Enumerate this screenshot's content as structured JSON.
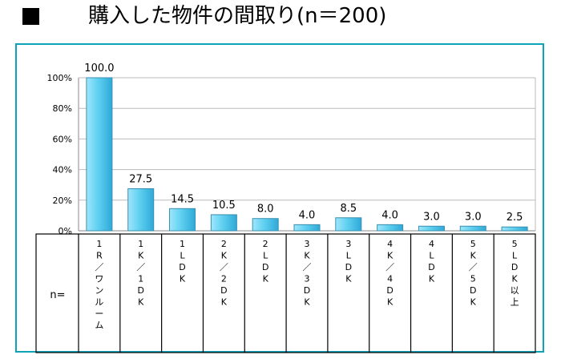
{
  "title": "購入した物件の間取り(n＝200)",
  "table_header": "n=",
  "chart_data": {
    "type": "bar",
    "title": "購入した物件の間取り(n＝200)",
    "categories": [
      "1R／ワンルーム",
      "1K／1DK",
      "1LDK",
      "2K／2DK",
      "2LDK",
      "3K／3DK",
      "3LDK",
      "4K／4DK",
      "4LDK",
      "5K／5DK",
      "5LDK以上"
    ],
    "values": [
      100.0,
      27.5,
      14.5,
      10.5,
      8.0,
      4.0,
      8.5,
      4.0,
      3.0,
      3.0,
      2.5
    ],
    "value_labels": [
      "100.0",
      "27.5",
      "14.5",
      "10.5",
      "8.0",
      "4.0",
      "8.5",
      "4.0",
      "3.0",
      "3.0",
      "2.5"
    ],
    "yticks": [
      "0%",
      "20%",
      "40%",
      "60%",
      "80%",
      "100%"
    ],
    "ylim": [
      0,
      100
    ],
    "grid": true,
    "bar_color": "#5fd0f0",
    "bar_edge": "#3a8fb0"
  }
}
